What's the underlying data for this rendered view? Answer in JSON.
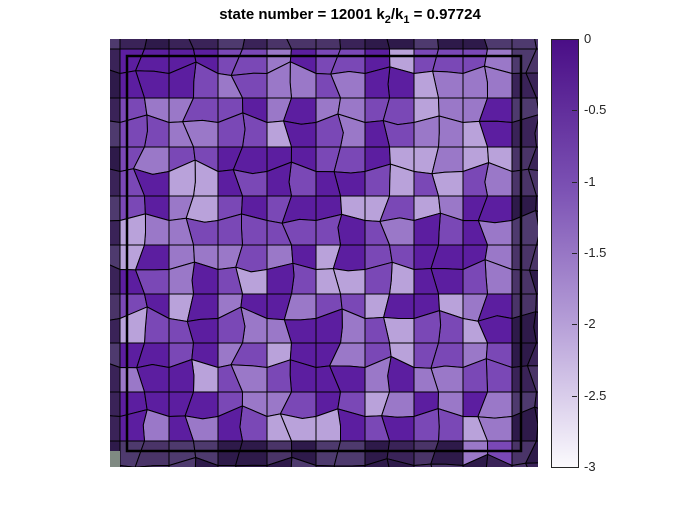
{
  "title": {
    "prefix": "state number = 12001 k",
    "sub1": "2",
    "mid": "/k",
    "sub2": "1",
    "suffix": " = 0.97724"
  },
  "colorbar": {
    "min": -3,
    "max": 0,
    "ticks": [
      "0",
      "-0.5",
      "-1",
      "-1.5",
      "-2",
      "-2.5",
      "-3"
    ],
    "tick_values": [
      0,
      -0.5,
      -1,
      -1.5,
      -2,
      -2.5,
      -3
    ],
    "color_top": "#4a0e86",
    "color_bottom": "#fbfafd"
  },
  "chart_data": {
    "type": "heatmap",
    "title": "state number = 12001 k2/k1 = 0.97724",
    "subtype": "pentagonal tiling colored by value",
    "colorbar_range": [
      -3,
      0
    ],
    "colorbar_ticks": [
      0,
      -0.5,
      -1,
      -1.5,
      -2,
      -2.5,
      -3
    ],
    "colormap": "white-to-purple",
    "inner_frame": true,
    "approx_value_levels": {
      "dark_tiles": -0.4,
      "medium_tiles": -0.9,
      "light_tiles": -1.4,
      "lightest_tiles": -1.8,
      "outer_border_tiles": -0.2
    },
    "grid": false,
    "legend": "colorbar right"
  },
  "palette": {
    "dark": "#5c1ea0",
    "medium": "#7a48b6",
    "light": "#9a78c8",
    "lightest": "#b9a2da",
    "border_dark": "#3a2358",
    "border_mid": "#4a3468",
    "edge": "#000000",
    "frame": "#000000"
  }
}
